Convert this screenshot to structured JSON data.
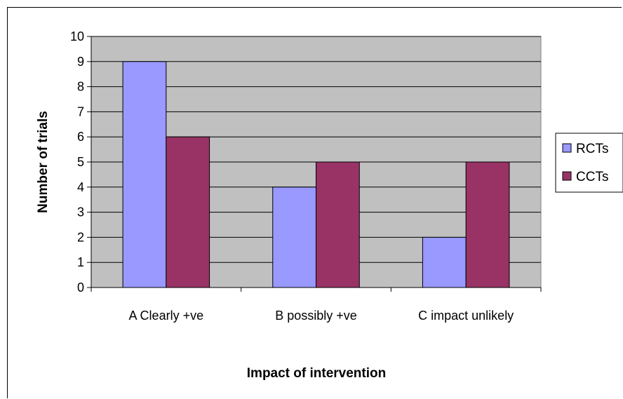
{
  "chart_data": {
    "type": "bar",
    "title": "",
    "xlabel": "Impact of intervention",
    "ylabel": "Number of trials",
    "categories": [
      "A Clearly +ve",
      "B possibly +ve",
      "C impact unlikely"
    ],
    "series": [
      {
        "name": "RCTs",
        "values": [
          9,
          4,
          2
        ],
        "color": "#9999FF"
      },
      {
        "name": "CCTs",
        "values": [
          6,
          5,
          5
        ],
        "color": "#993366"
      }
    ],
    "ylim": [
      0,
      10
    ],
    "yticks": [
      "0",
      "1",
      "2",
      "3",
      "4",
      "5",
      "6",
      "7",
      "8",
      "9",
      "10"
    ],
    "grid": true,
    "plot_background": "#C0C0C0",
    "legend_position": "right"
  }
}
